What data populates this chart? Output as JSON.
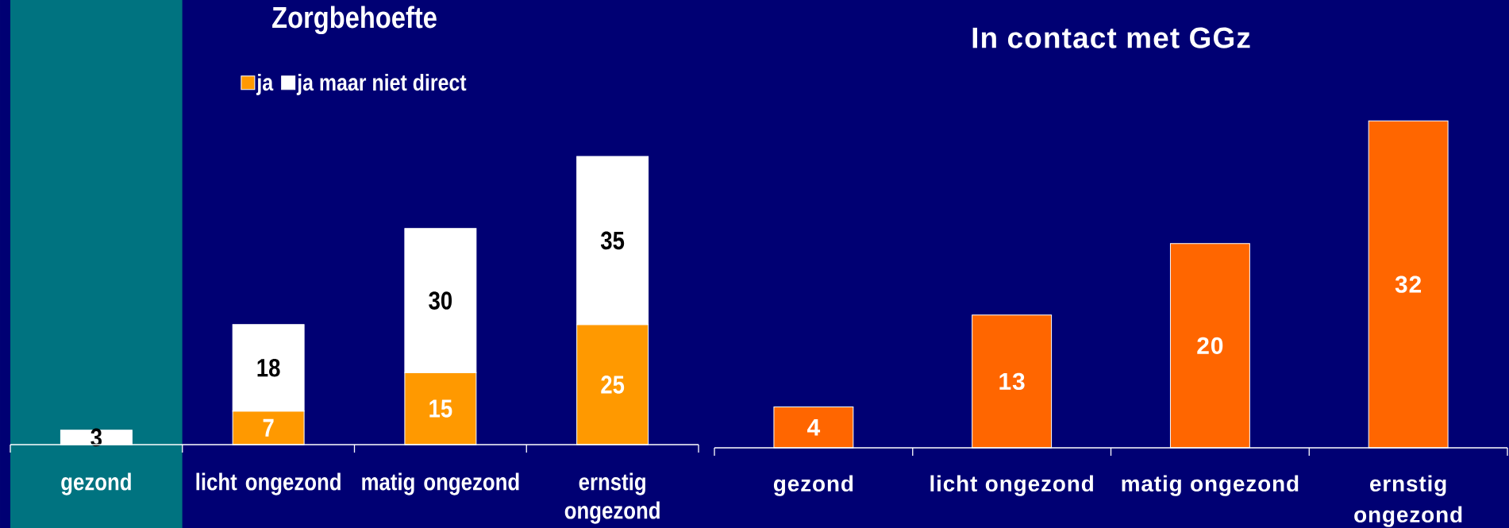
{
  "chart_data": [
    {
      "type": "bar",
      "title": "Zorgbehoefte",
      "categories": [
        "gezond",
        "licht ongezond",
        "matig ongezond",
        "ernstig ongezond"
      ],
      "stacked": true,
      "series": [
        {
          "name": "ja",
          "color": "#ff9900",
          "values": [
            null,
            7,
            15,
            25
          ]
        },
        {
          "name": "ja maar niet direct",
          "color": "#ffffff",
          "values": [
            3,
            18,
            30,
            35
          ]
        }
      ],
      "data_labels": true,
      "legend": "top",
      "bands": [
        {
          "axis": "x",
          "from": "gezond",
          "to": "gezond",
          "color": "#007380"
        }
      ]
    },
    {
      "type": "bar",
      "title": "In contact met GGz",
      "categories": [
        "gezond",
        "licht ongezond",
        "matig ongezond",
        "ernstig ongezond"
      ],
      "values": [
        4,
        13,
        20,
        32
      ],
      "color": "#ff6600",
      "data_labels": true
    }
  ]
}
